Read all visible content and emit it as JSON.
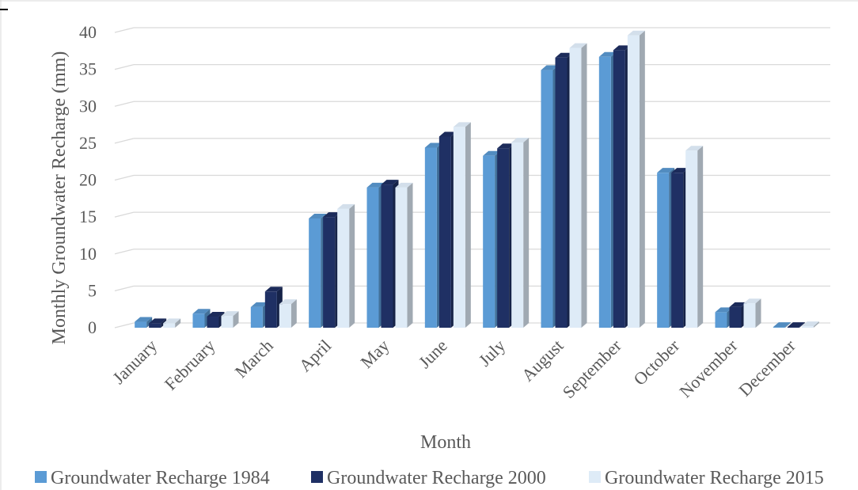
{
  "chart_data": {
    "type": "bar",
    "xlabel": "Month",
    "ylabel": "Monthly Groundwater Recharge (mm)",
    "ylim": [
      0,
      40
    ],
    "yticks": [
      0,
      5,
      10,
      15,
      20,
      25,
      30,
      35,
      40
    ],
    "grid": true,
    "legend_position": "bottom",
    "categories": [
      "January",
      "February",
      "March",
      "April",
      "May",
      "June",
      "July",
      "August",
      "September",
      "October",
      "November",
      "December"
    ],
    "series": [
      {
        "name": "Groundwater Recharge 1984",
        "color": "#5b9bd5",
        "values": [
          0.8,
          1.9,
          2.8,
          14.8,
          19.0,
          24.4,
          23.3,
          34.9,
          36.7,
          21.0,
          2.1,
          0.1
        ]
      },
      {
        "name": "Groundwater Recharge 2000",
        "color": "#1f3064",
        "values": [
          0.6,
          1.5,
          4.9,
          15.0,
          19.4,
          25.9,
          24.3,
          36.6,
          37.6,
          21.0,
          2.8,
          0.1
        ]
      },
      {
        "name": "Groundwater Recharge 2015",
        "color": "#deebf7",
        "values": [
          0.6,
          1.6,
          3.2,
          16.1,
          19.0,
          27.2,
          25.1,
          37.9,
          39.6,
          24.0,
          3.3,
          0.2
        ]
      }
    ]
  }
}
